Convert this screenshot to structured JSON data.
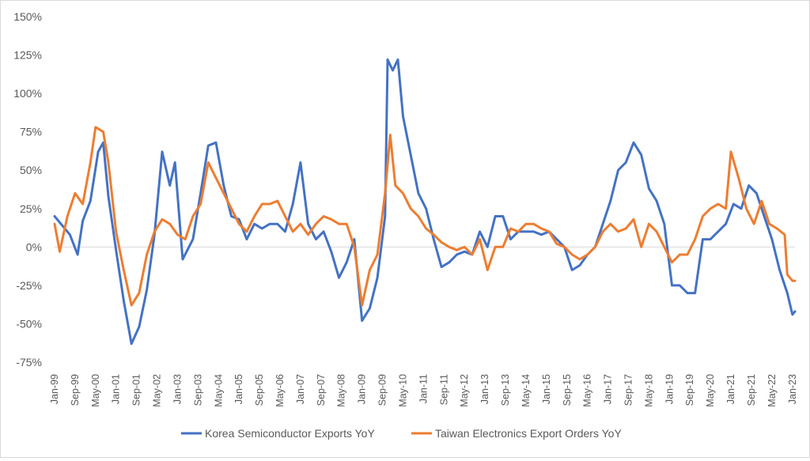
{
  "chart_data": {
    "type": "line",
    "title": "",
    "xlabel": "",
    "ylabel": "",
    "ylim": [
      -75,
      150
    ],
    "yticks": [
      150,
      125,
      100,
      75,
      50,
      25,
      0,
      -25,
      -50,
      -75
    ],
    "ytick_labels": [
      "150%",
      "125%",
      "100%",
      "75%",
      "50%",
      "25%",
      "0%",
      "-25%",
      "-50%",
      "-75%"
    ],
    "x_start": "Jan-99",
    "x_end": "Feb-23",
    "x_tick_labels": [
      "Jan-99",
      "Sep-99",
      "May-00",
      "Jan-01",
      "Sep-01",
      "May-02",
      "Jan-03",
      "Sep-03",
      "May-04",
      "Jan-05",
      "Sep-05",
      "May-06",
      "Jan-07",
      "Sep-07",
      "May-08",
      "Jan-09",
      "Sep-09",
      "May-10",
      "Jan-11",
      "Sep-11",
      "May-12",
      "Jan-13",
      "Sep-13",
      "May-14",
      "Jan-15",
      "Sep-15",
      "May-16",
      "Jan-17",
      "Sep-17",
      "May-18",
      "Jan-19",
      "Sep-19",
      "May-20",
      "Jan-21",
      "Sep-21",
      "May-22",
      "Jan-23"
    ],
    "grid": false,
    "legend_position": "bottom",
    "series": [
      {
        "name": "Korea Semiconductor Exports YoY",
        "color": "#4472c4",
        "points": [
          [
            "Jan-99",
            20
          ],
          [
            "Jul-99",
            8
          ],
          [
            "Oct-99",
            -5
          ],
          [
            "Dec-99",
            17
          ],
          [
            "Mar-00",
            30
          ],
          [
            "Jun-00",
            62
          ],
          [
            "Aug-00",
            68
          ],
          [
            "Oct-00",
            33
          ],
          [
            "Jan-01",
            -2
          ],
          [
            "Apr-01",
            -35
          ],
          [
            "Jul-01",
            -63
          ],
          [
            "Oct-01",
            -52
          ],
          [
            "Jan-02",
            -28
          ],
          [
            "Apr-02",
            8
          ],
          [
            "Jul-02",
            62
          ],
          [
            "Oct-02",
            40
          ],
          [
            "Dec-02",
            55
          ],
          [
            "Mar-03",
            -8
          ],
          [
            "Jul-03",
            5
          ],
          [
            "Oct-03",
            35
          ],
          [
            "Jan-04",
            66
          ],
          [
            "Apr-04",
            68
          ],
          [
            "Jul-04",
            40
          ],
          [
            "Oct-04",
            20
          ],
          [
            "Jan-05",
            18
          ],
          [
            "Apr-05",
            5
          ],
          [
            "Jul-05",
            15
          ],
          [
            "Oct-05",
            12
          ],
          [
            "Jan-06",
            15
          ],
          [
            "Apr-06",
            15
          ],
          [
            "Jul-06",
            10
          ],
          [
            "Oct-06",
            28
          ],
          [
            "Jan-07",
            55
          ],
          [
            "Apr-07",
            15
          ],
          [
            "Jul-07",
            5
          ],
          [
            "Oct-07",
            10
          ],
          [
            "Jan-08",
            -3
          ],
          [
            "Apr-08",
            -20
          ],
          [
            "Jul-08",
            -10
          ],
          [
            "Oct-08",
            5
          ],
          [
            "Jan-09",
            -48
          ],
          [
            "Apr-09",
            -40
          ],
          [
            "Jul-09",
            -20
          ],
          [
            "Oct-09",
            20
          ],
          [
            "Nov-09",
            122
          ],
          [
            "Jan-10",
            115
          ],
          [
            "Mar-10",
            122
          ],
          [
            "May-10",
            85
          ],
          [
            "Aug-10",
            60
          ],
          [
            "Nov-10",
            35
          ],
          [
            "Feb-11",
            25
          ],
          [
            "May-11",
            5
          ],
          [
            "Aug-11",
            -13
          ],
          [
            "Nov-11",
            -10
          ],
          [
            "Feb-12",
            -5
          ],
          [
            "May-12",
            -3
          ],
          [
            "Aug-12",
            -5
          ],
          [
            "Nov-12",
            10
          ],
          [
            "Feb-13",
            0
          ],
          [
            "May-13",
            20
          ],
          [
            "Aug-13",
            20
          ],
          [
            "Nov-13",
            5
          ],
          [
            "Feb-14",
            10
          ],
          [
            "May-14",
            10
          ],
          [
            "Aug-14",
            10
          ],
          [
            "Nov-14",
            8
          ],
          [
            "Feb-15",
            10
          ],
          [
            "May-15",
            5
          ],
          [
            "Aug-15",
            0
          ],
          [
            "Nov-15",
            -15
          ],
          [
            "Feb-16",
            -12
          ],
          [
            "May-16",
            -5
          ],
          [
            "Aug-16",
            0
          ],
          [
            "Nov-16",
            15
          ],
          [
            "Feb-17",
            30
          ],
          [
            "May-17",
            50
          ],
          [
            "Aug-17",
            55
          ],
          [
            "Nov-17",
            68
          ],
          [
            "Feb-18",
            60
          ],
          [
            "May-18",
            38
          ],
          [
            "Aug-18",
            30
          ],
          [
            "Nov-18",
            15
          ],
          [
            "Feb-19",
            -25
          ],
          [
            "May-19",
            -25
          ],
          [
            "Aug-19",
            -30
          ],
          [
            "Nov-19",
            -30
          ],
          [
            "Feb-20",
            5
          ],
          [
            "May-20",
            5
          ],
          [
            "Aug-20",
            10
          ],
          [
            "Nov-20",
            15
          ],
          [
            "Feb-21",
            28
          ],
          [
            "May-21",
            25
          ],
          [
            "Aug-21",
            40
          ],
          [
            "Nov-21",
            35
          ],
          [
            "Feb-22",
            20
          ],
          [
            "May-22",
            5
          ],
          [
            "Aug-22",
            -15
          ],
          [
            "Nov-22",
            -30
          ],
          [
            "Jan-23",
            -44
          ],
          [
            "Feb-23",
            -42
          ]
        ]
      },
      {
        "name": "Taiwan Electronics Export Orders YoY",
        "color": "#ed7d31",
        "points": [
          [
            "Jan-99",
            15
          ],
          [
            "Mar-99",
            -3
          ],
          [
            "Jun-99",
            20
          ],
          [
            "Sep-99",
            35
          ],
          [
            "Dec-99",
            28
          ],
          [
            "Mar-00",
            55
          ],
          [
            "May-00",
            78
          ],
          [
            "Aug-00",
            75
          ],
          [
            "Oct-00",
            55
          ],
          [
            "Jan-01",
            10
          ],
          [
            "Apr-01",
            -15
          ],
          [
            "Jul-01",
            -38
          ],
          [
            "Oct-01",
            -30
          ],
          [
            "Jan-02",
            -5
          ],
          [
            "Apr-02",
            10
          ],
          [
            "Jul-02",
            18
          ],
          [
            "Oct-02",
            15
          ],
          [
            "Jan-03",
            8
          ],
          [
            "Apr-03",
            5
          ],
          [
            "Jul-03",
            20
          ],
          [
            "Oct-03",
            28
          ],
          [
            "Jan-04",
            55
          ],
          [
            "Apr-04",
            45
          ],
          [
            "Jul-04",
            35
          ],
          [
            "Oct-04",
            25
          ],
          [
            "Jan-05",
            15
          ],
          [
            "Apr-05",
            10
          ],
          [
            "Jul-05",
            20
          ],
          [
            "Oct-05",
            28
          ],
          [
            "Jan-06",
            28
          ],
          [
            "Apr-06",
            30
          ],
          [
            "Jul-06",
            20
          ],
          [
            "Oct-06",
            10
          ],
          [
            "Jan-07",
            15
          ],
          [
            "Apr-07",
            8
          ],
          [
            "Jul-07",
            15
          ],
          [
            "Oct-07",
            20
          ],
          [
            "Jan-08",
            18
          ],
          [
            "Apr-08",
            15
          ],
          [
            "Jul-08",
            15
          ],
          [
            "Oct-08",
            0
          ],
          [
            "Jan-09",
            -38
          ],
          [
            "Apr-09",
            -15
          ],
          [
            "Jul-09",
            -5
          ],
          [
            "Oct-09",
            35
          ],
          [
            "Dec-09",
            73
          ],
          [
            "Feb-10",
            40
          ],
          [
            "May-10",
            35
          ],
          [
            "Aug-10",
            25
          ],
          [
            "Nov-10",
            20
          ],
          [
            "Feb-11",
            12
          ],
          [
            "May-11",
            8
          ],
          [
            "Aug-11",
            3
          ],
          [
            "Nov-11",
            0
          ],
          [
            "Feb-12",
            -2
          ],
          [
            "May-12",
            0
          ],
          [
            "Aug-12",
            -5
          ],
          [
            "Nov-12",
            5
          ],
          [
            "Feb-13",
            -15
          ],
          [
            "May-13",
            0
          ],
          [
            "Aug-13",
            0
          ],
          [
            "Nov-13",
            12
          ],
          [
            "Feb-14",
            10
          ],
          [
            "May-14",
            15
          ],
          [
            "Aug-14",
            15
          ],
          [
            "Nov-14",
            12
          ],
          [
            "Feb-15",
            10
          ],
          [
            "May-15",
            2
          ],
          [
            "Aug-15",
            0
          ],
          [
            "Nov-15",
            -5
          ],
          [
            "Feb-16",
            -8
          ],
          [
            "May-16",
            -5
          ],
          [
            "Aug-16",
            0
          ],
          [
            "Nov-16",
            10
          ],
          [
            "Feb-17",
            15
          ],
          [
            "May-17",
            10
          ],
          [
            "Aug-17",
            12
          ],
          [
            "Nov-17",
            18
          ],
          [
            "Feb-18",
            0
          ],
          [
            "May-18",
            15
          ],
          [
            "Aug-18",
            10
          ],
          [
            "Nov-18",
            0
          ],
          [
            "Feb-19",
            -10
          ],
          [
            "May-19",
            -5
          ],
          [
            "Aug-19",
            -5
          ],
          [
            "Nov-19",
            5
          ],
          [
            "Feb-20",
            20
          ],
          [
            "May-20",
            25
          ],
          [
            "Aug-20",
            28
          ],
          [
            "Nov-20",
            25
          ],
          [
            "Jan-21",
            62
          ],
          [
            "Apr-21",
            45
          ],
          [
            "Jul-21",
            25
          ],
          [
            "Oct-21",
            15
          ],
          [
            "Jan-22",
            30
          ],
          [
            "Apr-22",
            15
          ],
          [
            "Jul-22",
            12
          ],
          [
            "Oct-22",
            8
          ],
          [
            "Nov-22",
            -18
          ],
          [
            "Jan-23",
            -22
          ],
          [
            "Feb-23",
            -22
          ]
        ]
      }
    ]
  }
}
